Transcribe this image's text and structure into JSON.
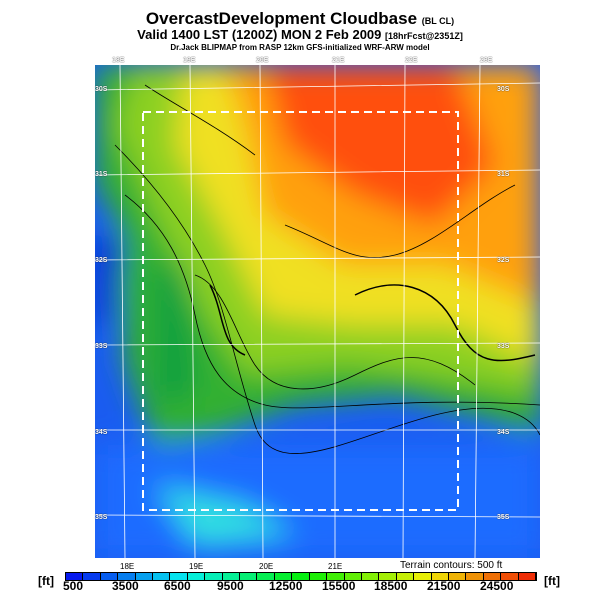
{
  "header": {
    "title": "OvercastDevelopment Cloudbase",
    "title_tag": "(BL CL)",
    "valid": "Valid 1400 LST (1200Z) MON 2 Feb 2009",
    "valid_tag": "[18hrFcst@2351Z]",
    "credit": "Dr.Jack BLIPMAP from RASP 12km GFS-initialized WRF-ARW model"
  },
  "map": {
    "top_lon_labels": [
      "18E",
      "19E",
      "20E",
      "21E",
      "22E",
      "23E"
    ],
    "bottom_lon_labels": [
      "18E",
      "19E",
      "20E",
      "21E"
    ],
    "lat_labels": [
      "30S",
      "31S",
      "32S",
      "33S",
      "34S",
      "35S"
    ],
    "terrain_note": "Terrain contours: 500 ft"
  },
  "colorbar": {
    "unit": "[ft]",
    "labels": [
      "500",
      "3500",
      "6500",
      "9500",
      "12500",
      "15500",
      "18500",
      "21500",
      "24500"
    ],
    "min_color": "#0000e0",
    "max_color": "#ff3010"
  }
}
